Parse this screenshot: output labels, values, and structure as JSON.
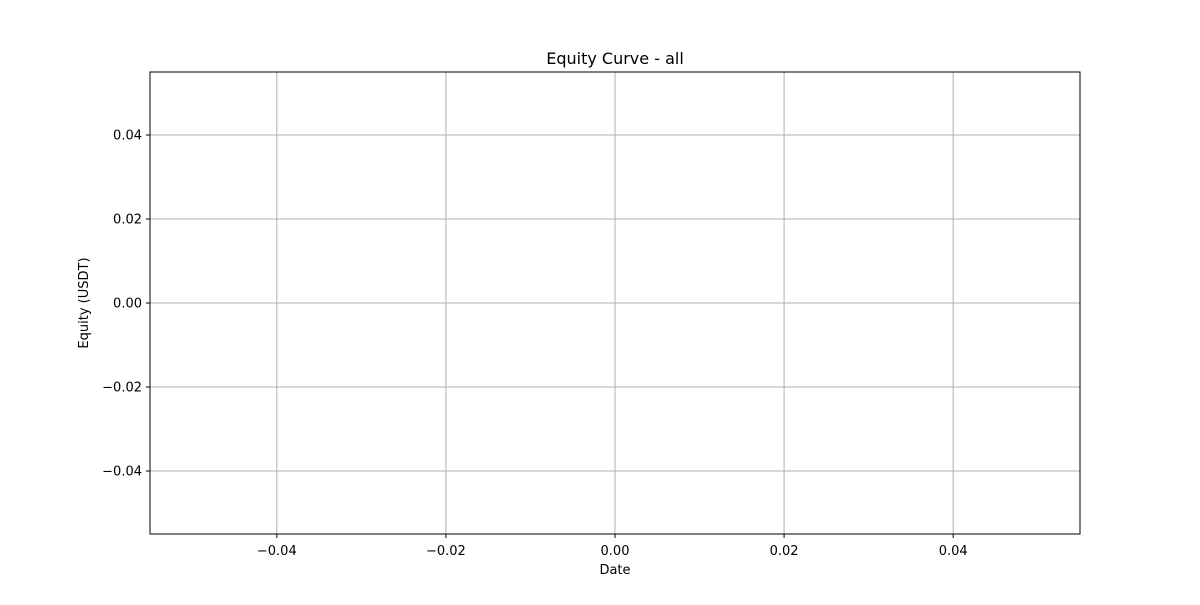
{
  "chart_data": {
    "type": "line",
    "title": "Equity Curve - all",
    "xlabel": "Date",
    "ylabel": "Equity (USDT)",
    "xlim": [
      -0.055,
      0.055
    ],
    "ylim": [
      -0.055,
      0.055
    ],
    "x_ticks": [
      -0.04,
      -0.02,
      0.0,
      0.02,
      0.04
    ],
    "x_tick_labels": [
      "−0.04",
      "−0.02",
      "0.00",
      "0.02",
      "0.04"
    ],
    "y_ticks": [
      0.04,
      0.02,
      0.0,
      -0.02,
      -0.04
    ],
    "y_tick_labels": [
      "0.04",
      "0.02",
      "0.00",
      "−0.02",
      "−0.04"
    ],
    "grid": true,
    "grid_color": "#b0b0b0",
    "series": []
  }
}
